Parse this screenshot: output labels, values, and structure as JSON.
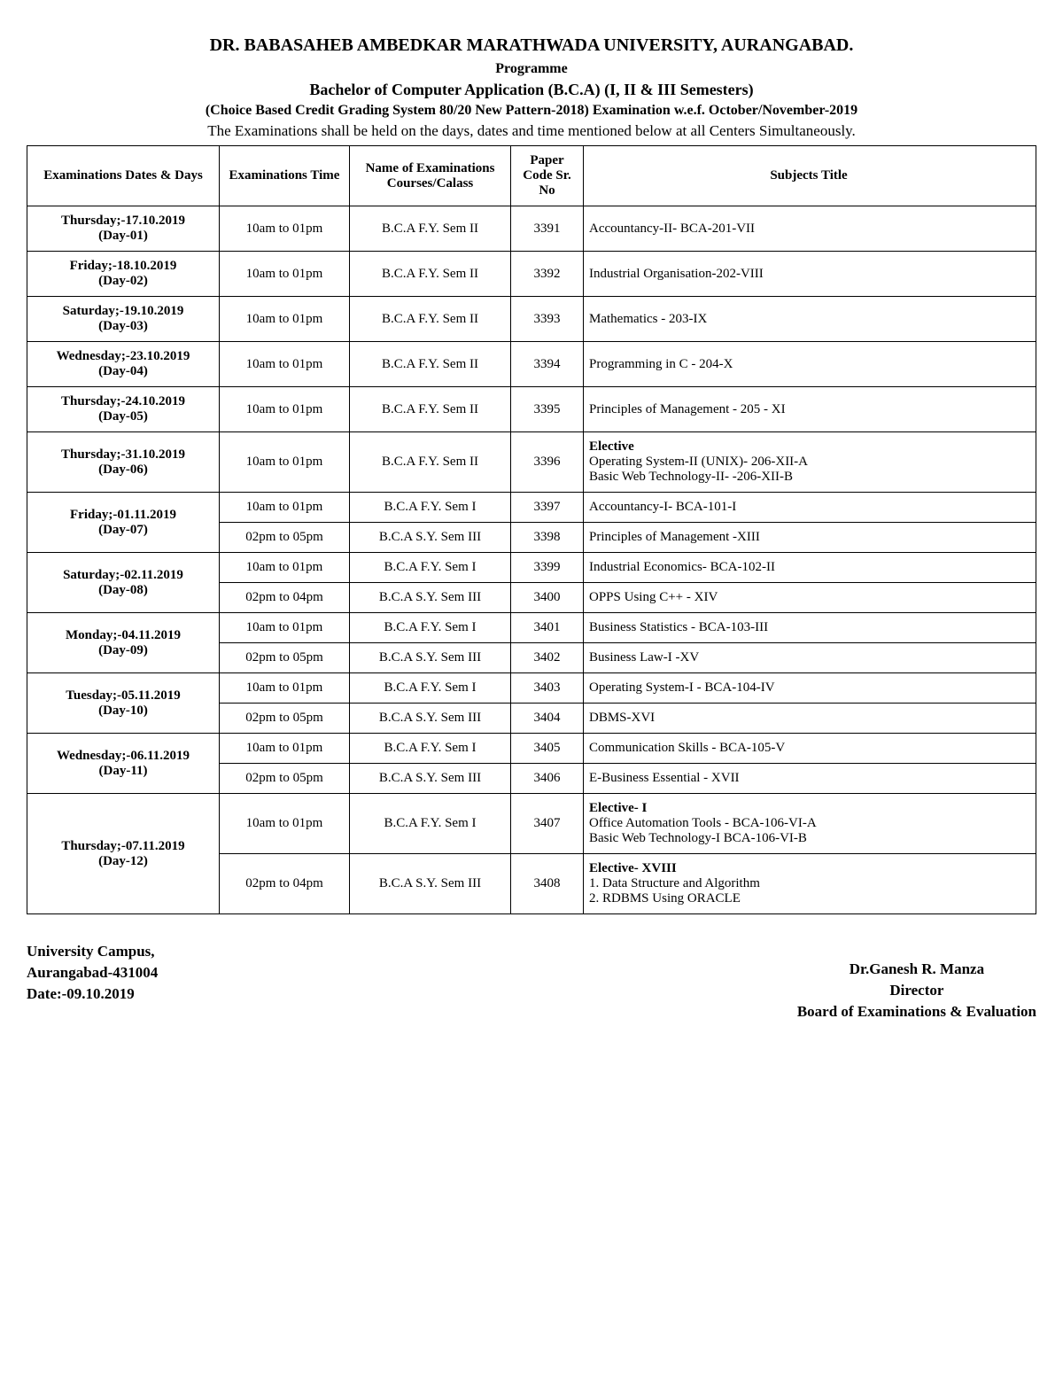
{
  "header": {
    "university": "DR. BABASAHEB AMBEDKAR MARATHWADA UNIVERSITY, AURANGABAD.",
    "programme_label": "Programme",
    "programme_name": "Bachelor of Computer Application  (B.C.A)  (I, II & III Semesters)",
    "pattern": "(Choice Based Credit Grading System 80/20 New Pattern-2018) Examination w.e.f.  October/November-2019",
    "note": "The Examinations shall be held on the days, dates and time mentioned below at all Centers Simultaneously."
  },
  "columns": {
    "c1": "Examinations Dates & Days",
    "c2": "Examinations Time",
    "c3": "Name of Examinations Courses/Calass",
    "c4": "Paper Code Sr. No",
    "c5": "Subjects Title"
  },
  "rows": [
    {
      "date": "Thursday;-17.10.2019 (Day-01)",
      "time": "10am to 01pm",
      "course": "B.C.A F.Y. Sem II",
      "code": "3391",
      "subject": "Accountancy-II- BCA-201-VII"
    },
    {
      "date": "Friday;-18.10.2019 (Day-02)",
      "time": "10am to 01pm",
      "course": "B.C.A F.Y. Sem II",
      "code": "3392",
      "subject": "Industrial Organisation-202-VIII"
    },
    {
      "date": "Saturday;-19.10.2019 (Day-03)",
      "time": "10am to 01pm",
      "course": "B.C.A F.Y. Sem II",
      "code": "3393",
      "subject": "Mathematics - 203-IX"
    },
    {
      "date": "Wednesday;-23.10.2019 (Day-04)",
      "time": "10am to 01pm",
      "course": "B.C.A F.Y. Sem II",
      "code": "3394",
      "subject": "Programming in C - 204-X"
    },
    {
      "date": "Thursday;-24.10.2019 (Day-05)",
      "time": "10am to 01pm",
      "course": "B.C.A F.Y. Sem II",
      "code": "3395",
      "subject": "Principles of Management - 205 - XI"
    },
    {
      "date": "Thursday;-31.10.2019 (Day-06)",
      "time": "10am to 01pm",
      "course": "B.C.A F.Y. Sem II",
      "code": "3396",
      "subject_bold": "Elective",
      "subject_lines": [
        "Operating System-II (UNIX)- 206-XII-A",
        "Basic Web Technology-II- -206-XII-B"
      ]
    },
    {
      "date": "Friday;-01.11.2019 (Day-07)",
      "time": "10am to 01pm",
      "course": "B.C.A F.Y. Sem I",
      "code": "3397",
      "subject": "Accountancy-I- BCA-101-I",
      "rowspan": 2
    },
    {
      "time": "02pm to 05pm",
      "course": "B.C.A S.Y. Sem III",
      "code": "3398",
      "subject": "Principles of Management -XIII"
    },
    {
      "date": "Saturday;-02.11.2019 (Day-08)",
      "time": "10am to 01pm",
      "course": "B.C.A F.Y. Sem I",
      "code": "3399",
      "subject": "Industrial Economics- BCA-102-II",
      "rowspan": 2
    },
    {
      "time": "02pm to 04pm",
      "course": "B.C.A S.Y. Sem III",
      "code": "3400",
      "subject": "OPPS Using C++ - XIV"
    },
    {
      "date": "Monday;-04.11.2019 (Day-09)",
      "time": "10am to 01pm",
      "course": "B.C.A F.Y. Sem I",
      "code": "3401",
      "subject": "Business Statistics - BCA-103-III",
      "rowspan": 2
    },
    {
      "time": "02pm to 05pm",
      "course": "B.C.A S.Y. Sem III",
      "code": "3402",
      "subject": "Business Law-I -XV"
    },
    {
      "date": "Tuesday;-05.11.2019 (Day-10)",
      "time": "10am to 01pm",
      "course": "B.C.A F.Y. Sem I",
      "code": "3403",
      "subject": "Operating System-I - BCA-104-IV",
      "rowspan": 2
    },
    {
      "time": "02pm to 05pm",
      "course": "B.C.A S.Y. Sem III",
      "code": "3404",
      "subject": "DBMS-XVI"
    },
    {
      "date": "Wednesday;-06.11.2019 (Day-11)",
      "time": "10am to 01pm",
      "course": "B.C.A F.Y. Sem I",
      "code": "3405",
      "subject": "Communication Skills - BCA-105-V",
      "rowspan": 2
    },
    {
      "time": "02pm to 05pm",
      "course": "B.C.A S.Y. Sem III",
      "code": "3406",
      "subject": "E-Business Essential - XVII"
    },
    {
      "date": "Thursday;-07.11.2019 (Day-12)",
      "time": "10am to 01pm",
      "course": "B.C.A F.Y. Sem I",
      "code": "3407",
      "subject_bold": "Elective- I",
      "subject_lines": [
        "Office Automation Tools - BCA-106-VI-A",
        "Basic Web Technology-I BCA-106-VI-B"
      ],
      "rowspan": 2
    },
    {
      "time": "02pm to 04pm",
      "course": "B.C.A S.Y. Sem III",
      "code": "3408",
      "subject_bold": "Elective- XVIII",
      "subject_lines": [
        "1. Data Structure and Algorithm",
        "2. RDBMS Using ORACLE"
      ]
    }
  ],
  "footer": {
    "left_l1": "University Campus,",
    "left_l2": "Aurangabad-431004",
    "left_l3": "Date:-09.10.2019",
    "right_l1": "Dr.Ganesh R. Manza",
    "right_l2": "Director",
    "right_l3": "Board of Examinations & Evaluation"
  }
}
